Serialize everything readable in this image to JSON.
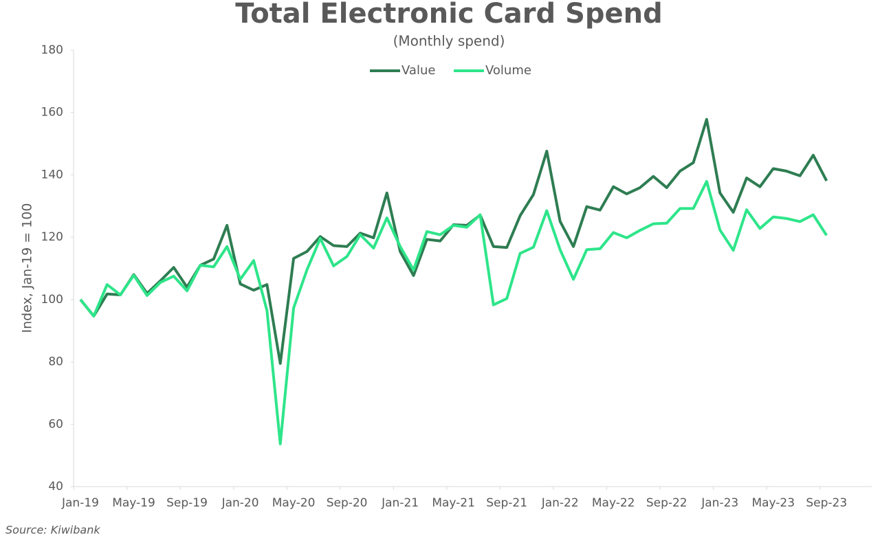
{
  "chart_data": {
    "type": "line",
    "title": "Total Electronic Card Spend",
    "subtitle": "(Monthly spend)",
    "y_label": "Index, Jan-19 = 100",
    "source": "Source: Kiwibank",
    "categories": [
      "Jan-19",
      null,
      null,
      null,
      "May-19",
      null,
      null,
      null,
      "Sep-19",
      null,
      null,
      null,
      "Jan-20",
      null,
      null,
      null,
      "May-20",
      null,
      null,
      null,
      "Sep-20",
      null,
      null,
      null,
      "Jan-21",
      null,
      null,
      null,
      "May-21",
      null,
      null,
      null,
      "Sep-21",
      null,
      null,
      null,
      "Jan-22",
      null,
      null,
      null,
      "May-22",
      null,
      null,
      null,
      "Sep-22",
      null,
      null,
      null,
      "Jan-23",
      null,
      null,
      null,
      "May-23",
      null,
      null,
      null,
      "Sep-23"
    ],
    "series": [
      {
        "name": "Value",
        "color": "#2e7d52",
        "values": [
          100,
          94.7,
          101.8,
          101.5,
          108,
          102,
          106,
          110.3,
          104,
          111,
          113,
          123.8,
          105,
          103,
          104.8,
          79.5,
          113.2,
          115.4,
          120.2,
          117.3,
          117,
          121.3,
          119.8,
          134.2,
          115.4,
          107.7,
          119.3,
          118.8,
          124,
          123.8,
          127.1,
          117,
          116.7,
          126.9,
          133.7,
          147.6,
          125.1,
          117,
          129.8,
          128.7,
          136.2,
          133.9,
          135.9,
          139.5,
          135.9,
          141.2,
          143.9,
          157.8,
          134.2,
          128,
          139,
          136.2,
          142,
          141.2,
          139.7,
          146.3,
          138.1
        ]
      },
      {
        "name": "Volume",
        "color": "#2ee58a",
        "values": [
          100,
          94.7,
          104.8,
          101.5,
          107.8,
          101.3,
          105.5,
          107.5,
          102.8,
          111,
          110.5,
          117,
          106.5,
          112.5,
          96.5,
          53.7,
          97.3,
          109.5,
          119.6,
          110.8,
          113.8,
          120.8,
          116.5,
          126.2,
          117,
          109.5,
          121.8,
          120.8,
          123.8,
          123.2,
          127.2,
          98.3,
          100.3,
          114.8,
          116.8,
          128.5,
          116,
          106.5,
          116,
          116.3,
          121.5,
          119.8,
          122.2,
          124.3,
          124.5,
          129.2,
          129.2,
          137.9,
          122.3,
          115.8,
          128.8,
          122.8,
          126.5,
          126,
          125,
          127.2,
          120.6
        ]
      }
    ],
    "ylim": [
      40,
      180
    ],
    "yticks": [
      40,
      60,
      80,
      100,
      120,
      140,
      160,
      180
    ],
    "grid": false,
    "legend": "top"
  }
}
